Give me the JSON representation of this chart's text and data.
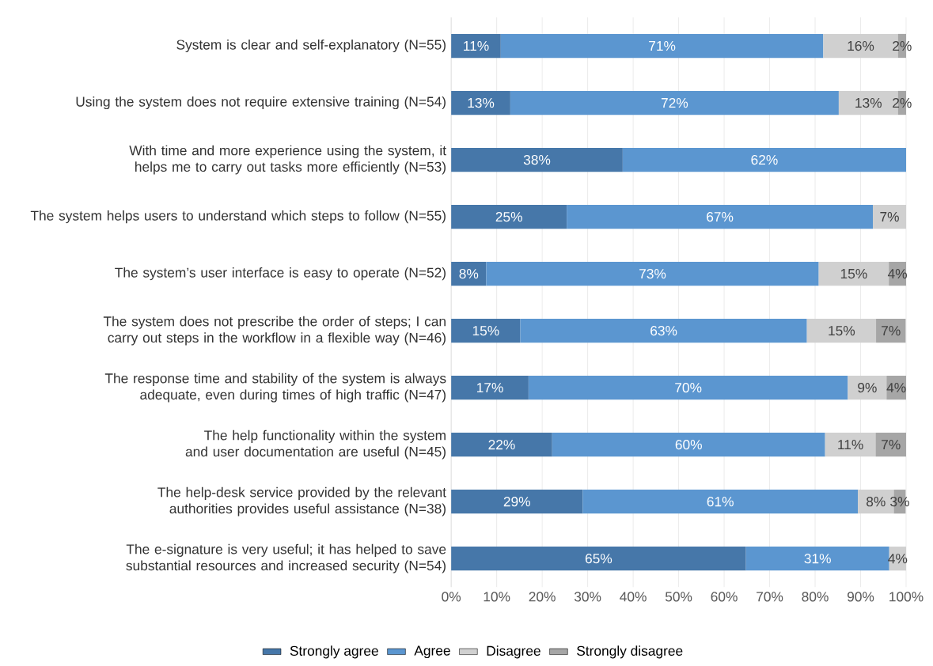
{
  "chart_data": {
    "type": "bar",
    "orientation": "horizontal",
    "stacked": true,
    "categories": [
      "System is clear and self-explanatory (N=55)",
      "Using the system does not require extensive training (N=54)",
      "With time and more experience using the system, it helps me to carry out tasks more efficiently (N=53)",
      "The system helps users to understand which steps to follow (N=55)",
      "The system’s user interface is easy to operate (N=52)",
      "The system does not prescribe the order of steps; I can carry out steps in the workflow in a flexible way (N=46)",
      "The response time and stability of the system is always adequate, even during times of high traffic (N=47)",
      "The help functionality within the system and user documentation are useful (N=45)",
      "The help-desk service provided by the relevant authorities provides useful assistance (N=38)",
      "The e-signature is very useful; it has helped to save substantial resources and increased security (N=54)"
    ],
    "series": [
      {
        "name": "Strongly agree",
        "color": "#4677a9",
        "values": [
          10.9,
          13.0,
          37.7,
          25.4,
          7.7,
          15.2,
          17.0,
          22.2,
          28.9,
          64.8
        ],
        "value_labels": [
          "11%",
          "13%",
          "38%",
          "25%",
          "8%",
          "15%",
          "17%",
          "22%",
          "29%",
          "65%"
        ]
      },
      {
        "name": "Agree",
        "color": "#5b96d0",
        "values": [
          70.9,
          72.2,
          62.3,
          67.3,
          73.1,
          63.0,
          70.2,
          60.0,
          60.5,
          31.5
        ],
        "value_labels": [
          "71%",
          "72%",
          "62%",
          "67%",
          "73%",
          "63%",
          "70%",
          "60%",
          "61%",
          "31%"
        ]
      },
      {
        "name": "Disagree",
        "color": "#d0d0d0",
        "values": [
          16.4,
          13.0,
          null,
          7.3,
          15.4,
          15.2,
          8.5,
          11.1,
          7.9,
          3.7
        ],
        "value_labels": [
          "16%",
          "13%",
          null,
          "7%",
          "15%",
          "15%",
          "9%",
          "11%",
          "8%",
          "4%"
        ]
      },
      {
        "name": "Strongly disagree",
        "color": "#a6a6a6",
        "values": [
          1.8,
          1.8,
          null,
          null,
          3.8,
          6.5,
          4.3,
          6.7,
          2.6,
          null
        ],
        "value_labels": [
          "2%",
          "2%",
          null,
          null,
          "4%",
          "7%",
          "4%",
          "7%",
          "3%",
          null
        ]
      }
    ],
    "xlim": [
      0,
      100
    ],
    "xticks": [
      {
        "value": 0,
        "label": "0%"
      },
      {
        "value": 10,
        "label": "10%"
      },
      {
        "value": 20,
        "label": "20%"
      },
      {
        "value": 30,
        "label": "30%"
      },
      {
        "value": 40,
        "label": "40%"
      },
      {
        "value": 50,
        "label": "50%"
      },
      {
        "value": 60,
        "label": "60%"
      },
      {
        "value": 70,
        "label": "70%"
      },
      {
        "value": 80,
        "label": "80%"
      },
      {
        "value": 90,
        "label": "90%"
      },
      {
        "value": 100,
        "label": "100%"
      }
    ],
    "grid": "x",
    "legend": "bottom"
  }
}
